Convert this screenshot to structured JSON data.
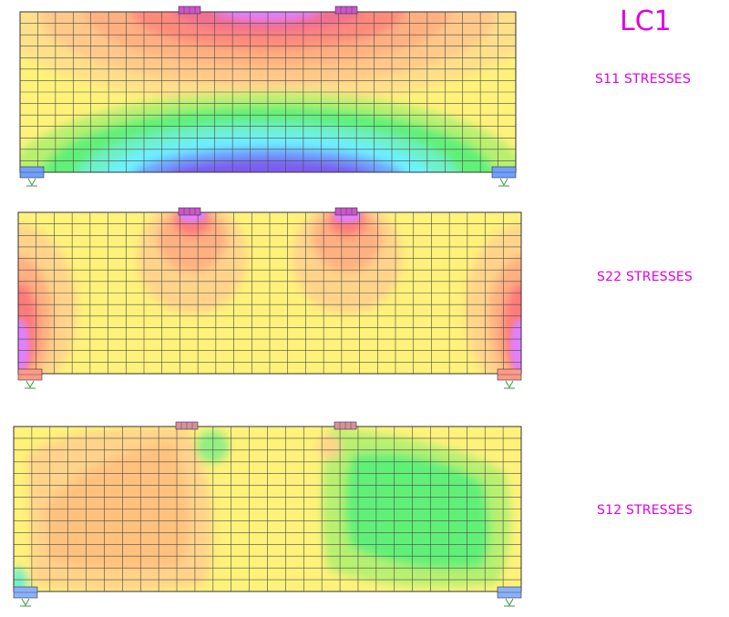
{
  "load_case": "LC1",
  "plots": [
    {
      "label": "S11 STRESSES",
      "component": "S11"
    },
    {
      "label": "S22 STRESSES",
      "component": "S22"
    },
    {
      "label": "S12 STRESSES",
      "component": "S12"
    }
  ],
  "mesh": {
    "columns": 28,
    "rows": 14
  },
  "colors": {
    "background": "#ffffff",
    "label": "#e000e0",
    "mesh_line": "#4a4a4a",
    "neutral": "#fff27a",
    "contour_scale": [
      "#7b5cf0",
      "#6fa0ff",
      "#6ef0ff",
      "#60f078",
      "#b8f070",
      "#fff27a",
      "#ffd48a",
      "#ffb080",
      "#ff7a7a",
      "#e080ff"
    ]
  }
}
